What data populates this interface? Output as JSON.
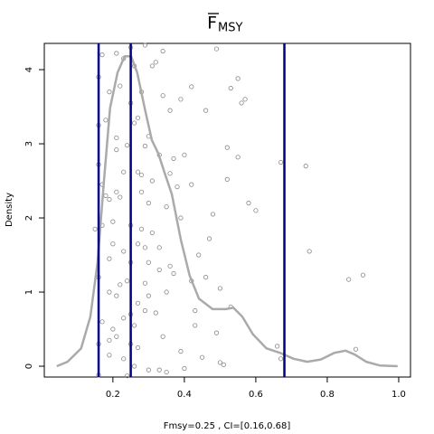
{
  "chart_data": {
    "type": "density",
    "title": "F",
    "title_subscript": "MSY",
    "xlabel": "Fmsy=0.25 , CI=[0.16,0.68]",
    "ylabel": "Density",
    "xlim": [
      0.008,
      1.033
    ],
    "ylim": [
      -0.146,
      4.354
    ],
    "xticks": [
      0.2,
      0.4,
      0.6,
      0.8,
      {
        "value": 1.0,
        "label": "1.0"
      }
    ],
    "yticks": [
      0,
      1,
      2,
      3,
      4
    ],
    "density": {
      "color": "#aaaaaa",
      "x": [
        0.043,
        0.073,
        0.111,
        0.137,
        0.157,
        0.175,
        0.192,
        0.213,
        0.233,
        0.251,
        0.268,
        0.289,
        0.309,
        0.327,
        0.344,
        0.365,
        0.39,
        0.415,
        0.441,
        0.479,
        0.516,
        0.537,
        0.562,
        0.592,
        0.63,
        0.668,
        0.706,
        0.744,
        0.782,
        0.82,
        0.851,
        0.876,
        0.909,
        0.947,
        0.997
      ],
      "y": [
        0,
        0.06,
        0.24,
        0.67,
        1.4,
        2.5,
        3.48,
        3.96,
        4.18,
        4.18,
        3.96,
        3.48,
        3.05,
        2.87,
        2.62,
        2.32,
        1.71,
        1.22,
        0.91,
        0.77,
        0.77,
        0.79,
        0.67,
        0.43,
        0.24,
        0.18,
        0.1,
        0.06,
        0.09,
        0.18,
        0.21,
        0.16,
        0.06,
        0.01,
        0
      ]
    },
    "points": {
      "color": "#888888",
      "x": [
        0.17,
        0.16,
        0.21,
        0.23,
        0.25,
        0.26,
        0.29,
        0.31,
        0.32,
        0.34,
        0.49,
        0.19,
        0.22,
        0.28,
        0.16,
        0.18,
        0.25,
        0.26,
        0.27,
        0.3,
        0.34,
        0.36,
        0.39,
        0.42,
        0.46,
        0.53,
        0.55,
        0.56,
        0.57,
        0.21,
        0.21,
        0.24,
        0.29,
        0.33,
        0.37,
        0.4,
        0.52,
        0.55,
        0.67,
        0.74,
        0.16,
        0.23,
        0.27,
        0.28,
        0.31,
        0.36,
        0.38,
        0.42,
        0.52,
        0.17,
        0.18,
        0.21,
        0.22,
        0.19,
        0.28,
        0.3,
        0.35,
        0.39,
        0.58,
        0.6,
        0.48,
        0.15,
        0.17,
        0.2,
        0.25,
        0.28,
        0.31,
        0.27,
        0.29,
        0.2,
        0.23,
        0.33,
        0.25,
        0.19,
        0.3,
        0.36,
        0.44,
        0.47,
        0.75,
        0.16,
        0.22,
        0.24,
        0.29,
        0.33,
        0.37,
        0.42,
        0.46,
        0.19,
        0.21,
        0.27,
        0.3,
        0.35,
        0.5,
        0.86,
        0.9,
        0.17,
        0.2,
        0.23,
        0.25,
        0.26,
        0.29,
        0.32,
        0.43,
        0.53,
        0.43,
        0.49,
        0.16,
        0.19,
        0.21,
        0.25,
        0.27,
        0.34,
        0.39,
        0.66,
        0.88,
        0.19,
        0.23,
        0.26,
        0.33,
        0.35,
        0.4,
        0.45,
        0.5,
        0.51,
        0.67,
        0.16,
        0.24,
        0.3
      ],
      "y": [
        4.2,
        3.9,
        4.22,
        4.15,
        4.3,
        4.05,
        4.33,
        4.05,
        4.1,
        4.25,
        4.28,
        3.7,
        3.78,
        3.7,
        3.25,
        3.32,
        3.55,
        3.28,
        3.35,
        3.1,
        3.65,
        3.45,
        3.6,
        3.77,
        3.45,
        3.75,
        3.88,
        3.55,
        3.6,
        3.08,
        2.92,
        2.98,
        2.97,
        2.85,
        2.8,
        2.85,
        2.95,
        2.82,
        2.75,
        2.7,
        2.72,
        2.62,
        2.62,
        2.58,
        2.5,
        2.6,
        2.42,
        2.45,
        2.52,
        2.45,
        2.3,
        2.35,
        2.28,
        2.25,
        2.35,
        2.2,
        2.15,
        2.0,
        2.2,
        2.1,
        2.05,
        1.85,
        1.9,
        1.95,
        1.9,
        1.85,
        1.8,
        1.65,
        1.6,
        1.65,
        1.55,
        1.6,
        1.4,
        1.45,
        1.4,
        1.35,
        1.5,
        1.72,
        1.55,
        1.2,
        1.1,
        1.15,
        1.12,
        1.3,
        1.25,
        1.15,
        1.2,
        1.0,
        0.95,
        0.85,
        0.95,
        1.0,
        1.05,
        1.17,
        1.23,
        0.6,
        0.5,
        0.65,
        0.7,
        0.55,
        0.75,
        0.72,
        0.75,
        0.8,
        0.55,
        0.45,
        0.3,
        0.35,
        0.4,
        0.3,
        0.25,
        0.4,
        0.2,
        0.27,
        0.23,
        0.15,
        0.1,
        0.0,
        -0.05,
        -0.08,
        -0.03,
        0.12,
        0.05,
        0.02,
        0.1,
        -0.12,
        -0.13,
        -0.05
      ]
    },
    "vlines": [
      0.16,
      0.25,
      0.68
    ],
    "vline_color": "#000080"
  }
}
